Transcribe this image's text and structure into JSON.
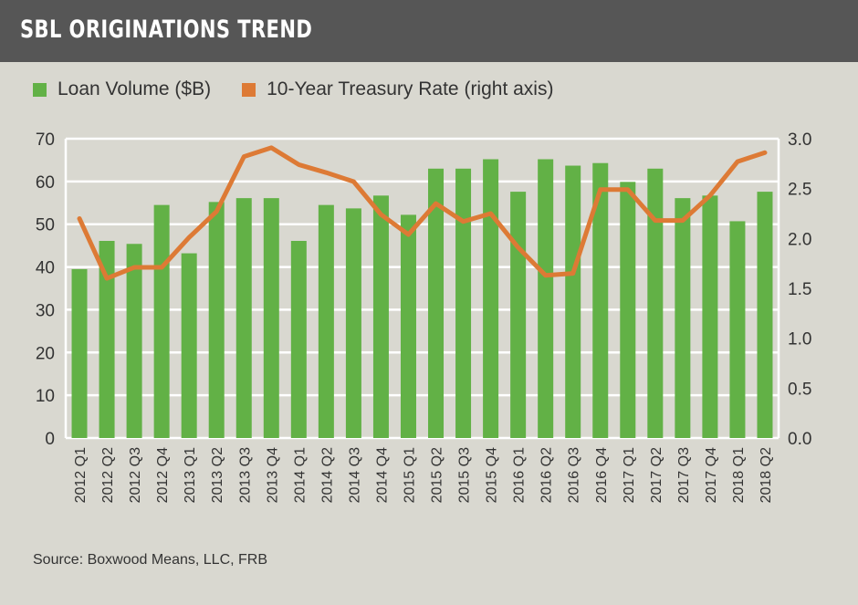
{
  "header": {
    "title": "SBL ORIGINATIONS TREND"
  },
  "source": "Source: Boxwood Means, LLC, FRB",
  "colors": {
    "header_bg": "#565656",
    "background": "#d9d8d0",
    "bars": "#62b146",
    "line": "#dd7a35"
  },
  "chart_data": {
    "type": "bar+line",
    "title": "SBL ORIGINATIONS TREND",
    "categories": [
      "2012 Q1",
      "2012 Q2",
      "2012 Q3",
      "2012 Q4",
      "2013 Q1",
      "2013 Q2",
      "2013 Q3",
      "2013 Q4",
      "2014 Q1",
      "2014 Q2",
      "2014 Q3",
      "2014 Q4",
      "2015 Q1",
      "2015 Q2",
      "2015 Q3",
      "2015 Q4",
      "2016 Q1",
      "2016 Q2",
      "2016 Q3",
      "2016 Q4",
      "2017 Q1",
      "2017 Q2",
      "2017 Q3",
      "2017 Q4",
      "2018 Q1",
      "2018 Q2"
    ],
    "series": [
      {
        "name": "Loan Volume ($B)",
        "type": "bar",
        "axis": "left",
        "values": [
          39.5,
          46.1,
          45.4,
          54.5,
          43.2,
          55.2,
          56.1,
          56.1,
          46.1,
          54.5,
          53.7,
          56.7,
          52.2,
          63.0,
          63.0,
          65.2,
          57.6,
          65.2,
          63.7,
          64.3,
          59.9,
          63.0,
          56.1,
          56.7,
          50.7,
          57.6
        ]
      },
      {
        "name": "10-Year Treasury Rate (right axis)",
        "type": "line",
        "axis": "right",
        "values": [
          2.2,
          1.6,
          1.71,
          1.71,
          2.01,
          2.27,
          2.82,
          2.91,
          2.74,
          2.66,
          2.57,
          2.24,
          2.04,
          2.35,
          2.17,
          2.25,
          1.91,
          1.63,
          1.65,
          2.49,
          2.49,
          2.18,
          2.18,
          2.43,
          2.77,
          2.86
        ]
      }
    ],
    "y_left": {
      "range": [
        0,
        70
      ],
      "ticks": [
        "0",
        "10",
        "20",
        "30",
        "40",
        "50",
        "60",
        "70"
      ]
    },
    "y_right": {
      "range": [
        0,
        3
      ],
      "ticks": [
        "0.0",
        "0.5",
        "1.0",
        "1.5",
        "2.0",
        "2.5",
        "3.0"
      ]
    },
    "grid": true,
    "legend_position": "top-left"
  }
}
